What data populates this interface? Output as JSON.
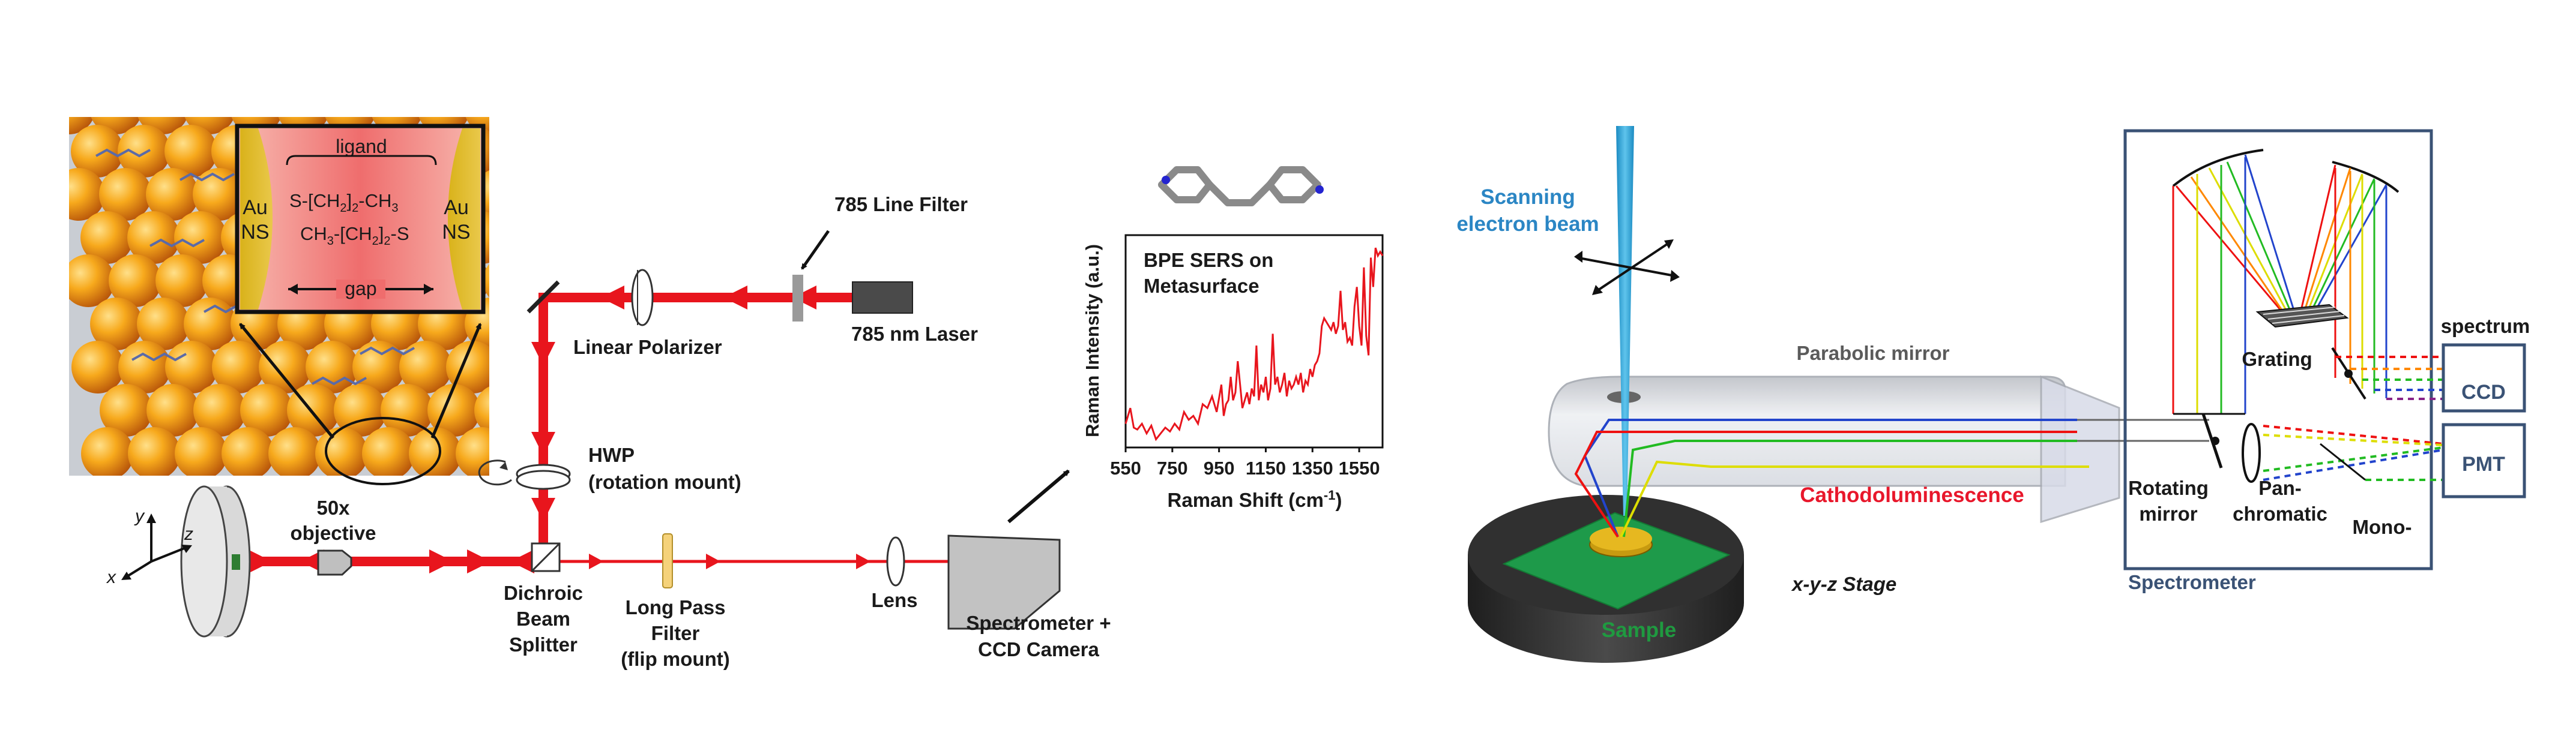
{
  "left_setup": {
    "inset": {
      "ligand": "ligand",
      "au_left_1": "Au",
      "au_left_2": "NS",
      "au_right_1": "Au",
      "au_right_2": "NS",
      "chain_top": "S-[CH",
      "chain_top_b": "]",
      "chain_top_c": "-CH",
      "chain_bot": "CH",
      "chain_bot_b": "-[CH",
      "chain_bot_c": "]",
      "chain_bot_d": "-S",
      "sub2": "2",
      "sub3": "3",
      "gap": "gap"
    },
    "labels": {
      "line_filter": "785 Line Filter",
      "laser": "785 nm Laser",
      "polarizer": "Linear Polarizer",
      "hwp_1": "HWP",
      "hwp_2": "(rotation mount)",
      "objective_1": "50x",
      "objective_2": "objective",
      "dichroic_1": "Dichroic",
      "dichroic_2": "Beam",
      "dichroic_3": "Splitter",
      "lpf_1": "Long Pass",
      "lpf_2": "Filter",
      "lpf_3": "(flip mount)",
      "lens": "Lens",
      "spectrometer_1": "Spectrometer +",
      "spectrometer_2": "CCD Camera",
      "axis_x": "x",
      "axis_y": "y",
      "axis_z": "z"
    },
    "colors": {
      "beam": "#e8151d",
      "gold": "#f5a623",
      "inset_bg": "#f28080"
    }
  },
  "chart_data": {
    "type": "line",
    "title": "BPE SERS on",
    "subtitle": "Metasurface",
    "xlabel": "Raman Shift (cm",
    "xlabel_sup": "-1",
    "xlabel_end": ")",
    "ylabel": "Raman Intensity (a.u.)",
    "xlim": [
      550,
      1650
    ],
    "ylim": [
      0,
      1
    ],
    "x_ticks": [
      "550",
      "750",
      "950",
      "1150",
      "1350",
      "1550"
    ],
    "x_tick_values": [
      550,
      750,
      950,
      1150,
      1350,
      1550
    ],
    "series": [
      {
        "color": "#e8151d",
        "x": [
          550,
          570,
          585,
          600,
          620,
          640,
          660,
          680,
          700,
          720,
          740,
          760,
          780,
          800,
          820,
          840,
          860,
          880,
          900,
          920,
          940,
          960,
          970,
          980,
          990,
          1000,
          1010,
          1020,
          1030,
          1040,
          1050,
          1060,
          1070,
          1080,
          1090,
          1100,
          1110,
          1120,
          1130,
          1140,
          1150,
          1160,
          1170,
          1180,
          1190,
          1200,
          1210,
          1220,
          1230,
          1240,
          1250,
          1260,
          1270,
          1280,
          1290,
          1300,
          1310,
          1320,
          1330,
          1340,
          1350,
          1360,
          1370,
          1380,
          1390,
          1400,
          1410,
          1420,
          1430,
          1440,
          1450,
          1460,
          1470,
          1480,
          1490,
          1500,
          1510,
          1520,
          1530,
          1540,
          1550,
          1560,
          1570,
          1580,
          1590,
          1600,
          1610,
          1620,
          1630,
          1640,
          1650
        ],
        "y": [
          0.1,
          0.18,
          0.08,
          0.07,
          0.1,
          0.05,
          0.09,
          0.02,
          0.05,
          0.08,
          0.06,
          0.1,
          0.07,
          0.16,
          0.12,
          0.14,
          0.1,
          0.2,
          0.18,
          0.24,
          0.16,
          0.3,
          0.14,
          0.2,
          0.22,
          0.34,
          0.22,
          0.26,
          0.42,
          0.3,
          0.18,
          0.22,
          0.26,
          0.2,
          0.28,
          0.24,
          0.5,
          0.22,
          0.3,
          0.26,
          0.34,
          0.22,
          0.28,
          0.56,
          0.3,
          0.34,
          0.26,
          0.3,
          0.36,
          0.24,
          0.32,
          0.28,
          0.3,
          0.34,
          0.3,
          0.36,
          0.26,
          0.32,
          0.3,
          0.38,
          0.34,
          0.4,
          0.42,
          0.46,
          0.6,
          0.64,
          0.62,
          0.6,
          0.58,
          0.62,
          0.56,
          0.6,
          0.78,
          0.58,
          0.62,
          0.52,
          0.54,
          0.5,
          0.7,
          0.8,
          0.6,
          0.5,
          0.9,
          0.55,
          0.45,
          0.95,
          0.8,
          1.0,
          0.96,
          0.98,
          0.96
        ]
      }
    ]
  },
  "right_setup": {
    "labels": {
      "scanning_1": "Scanning",
      "scanning_2": "electron beam",
      "parabolic": "Parabolic mirror",
      "cathodo": "Cathodoluminescence",
      "stage": "x-y-z Stage",
      "sample": "Sample",
      "rotating_1": "Rotating",
      "rotating_2": "mirror",
      "pan_1": "Pan-",
      "pan_2": "chromatic",
      "mono": "Mono-",
      "grating": "Grating",
      "spectrum": "spectrum",
      "ccd": "CCD",
      "pmt": "PMT",
      "spectrometer": "Spectrometer"
    },
    "colors": {
      "ebeam": "#2aa6d8",
      "stage": "#2b2b2b",
      "sample": "#1e9a4a",
      "box": "#3a5275"
    }
  }
}
